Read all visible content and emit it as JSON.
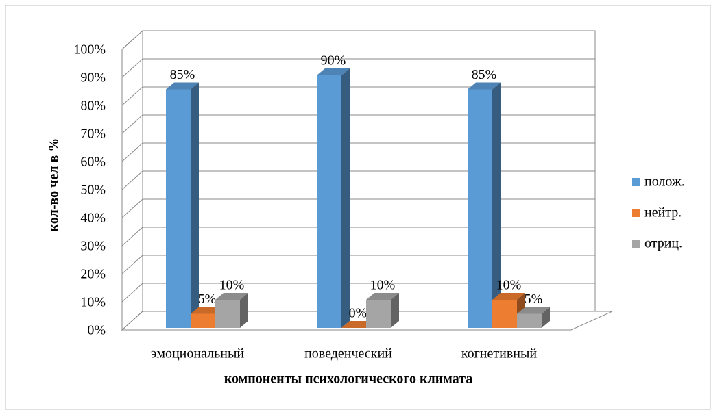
{
  "chart_data": {
    "type": "bar3d",
    "categories": [
      "эмоциональный",
      "поведенческий",
      "когнетивный"
    ],
    "series": [
      {
        "name": "полож.",
        "color": "#5b9bd5",
        "values": [
          85,
          90,
          85
        ],
        "value_labels": [
          "85%",
          "90%",
          "85%"
        ]
      },
      {
        "name": "нейтр.",
        "color": "#ed7d31",
        "values": [
          5,
          0,
          10
        ],
        "value_labels": [
          "5%",
          "0%",
          "10%"
        ]
      },
      {
        "name": "отриц.",
        "color": "#a5a5a5",
        "values": [
          10,
          10,
          5
        ],
        "value_labels": [
          "10%",
          "10%",
          "5%"
        ]
      }
    ],
    "ylim": [
      0,
      100
    ],
    "yticks": [
      {
        "value": 0,
        "label": "0%"
      },
      {
        "value": 10,
        "label": "10%"
      },
      {
        "value": 20,
        "label": "20%"
      },
      {
        "value": 30,
        "label": "30%"
      },
      {
        "value": 40,
        "label": "40%"
      },
      {
        "value": 50,
        "label": "50%"
      },
      {
        "value": 60,
        "label": "60%"
      },
      {
        "value": 70,
        "label": "70%"
      },
      {
        "value": 80,
        "label": "80%"
      },
      {
        "value": 90,
        "label": "90%"
      },
      {
        "value": 100,
        "label": "100%"
      }
    ],
    "y_label": "кол-во чел в %",
    "x_label": "компоненты психологического климата",
    "grid": true,
    "legend": "right"
  }
}
